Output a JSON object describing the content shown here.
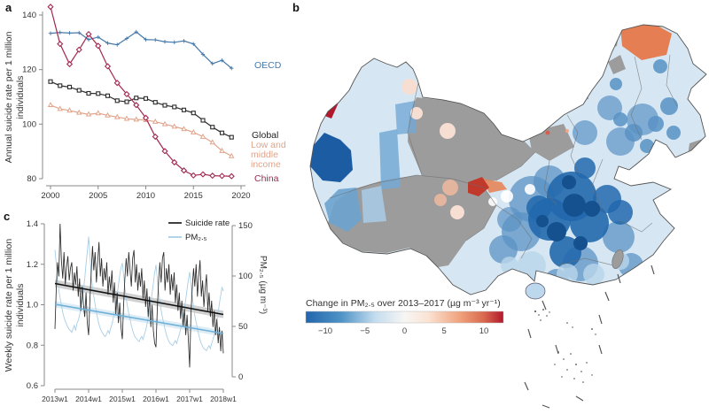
{
  "panels": {
    "a": "a",
    "b": "b",
    "c": "c"
  },
  "chart_data": [
    {
      "panel": "a",
      "type": "line",
      "title": "",
      "ylabel_lines": [
        "Annual suicide rate per 1 million",
        "individuals"
      ],
      "ylabel": "Annual suicide rate per 1 million individuals",
      "xlabel": "",
      "ylim": [
        80,
        140
      ],
      "xlim": [
        2000,
        2020
      ],
      "y_ticks": [
        140,
        120,
        100,
        80
      ],
      "y_tick_labels": [
        "140",
        "120",
        "100",
        "80"
      ],
      "x_ticks": [
        2000,
        2005,
        2010,
        2015,
        2020
      ],
      "x_tick_labels": [
        "2000",
        "2005",
        "2010",
        "2015",
        "2020"
      ],
      "x_years": [
        2000,
        2001,
        2002,
        2003,
        2004,
        2005,
        2006,
        2007,
        2008,
        2009,
        2010,
        2011,
        2012,
        2013,
        2014,
        2015,
        2016,
        2017,
        2018,
        2019
      ],
      "series": [
        {
          "name": "OECD",
          "color": "#4679a9",
          "marker": "plus",
          "label_lines": [
            "OECD"
          ],
          "values": [
            133.3,
            133.6,
            133.4,
            133.5,
            131.0,
            131.9,
            129.7,
            129.1,
            131.4,
            133.8,
            131.0,
            130.9,
            130.2,
            130.0,
            130.5,
            129.4,
            125.6,
            122.2,
            123.4,
            120.5
          ]
        },
        {
          "name": "Global",
          "color": "#2b2b2b",
          "marker": "square",
          "label_lines": [
            "Global"
          ],
          "values": [
            115.6,
            114.1,
            113.6,
            112.4,
            111.3,
            111.2,
            110.4,
            108.6,
            108.2,
            109.6,
            109.4,
            108.0,
            106.9,
            106.3,
            105.2,
            104.1,
            101.4,
            98.9,
            96.8,
            95.2
          ]
        },
        {
          "name": "Low and middle income",
          "color": "#e2a48b",
          "marker": "triangle",
          "label_lines": [
            "Low and",
            "middle",
            "income"
          ],
          "values": [
            107.0,
            105.6,
            105.0,
            104.2,
            103.6,
            104.0,
            103.2,
            102.6,
            102.0,
            101.7,
            101.5,
            100.9,
            100.0,
            99.1,
            98.2,
            97.0,
            95.4,
            93.3,
            90.2,
            88.3
          ]
        },
        {
          "name": "China",
          "color": "#a12950",
          "marker": "diamond",
          "label_lines": [
            "China"
          ],
          "values": [
            143.0,
            129.4,
            122.0,
            127.3,
            133.0,
            128.7,
            121.2,
            115.1,
            111.0,
            107.0,
            102.3,
            95.4,
            90.1,
            86.0,
            83.0,
            81.2,
            81.6,
            81.1,
            81.0,
            80.9
          ]
        }
      ]
    },
    {
      "panel": "b",
      "type": "heatmap",
      "subtype": "choropleth-map",
      "title": "Change in PM₂.₅ over 2013–2017 (µg m⁻³ yr⁻¹)",
      "description": "County-level map of China: blue = decline in PM2.5, red = increase, gray = no data; dashed nine-dash line and island dots in the South China Sea",
      "colorbar_range": [
        -12.5,
        12.5
      ],
      "colorbar_ticks": [
        -10,
        -5,
        0,
        5,
        10
      ],
      "colorbar_tick_labels": [
        "−10",
        "−5",
        "0",
        "5",
        "10"
      ],
      "gradient_stops": [
        "#2166ac",
        "#4f93c6",
        "#c3dcee",
        "#f7f6f4",
        "#fbe3d3",
        "#f0a27c",
        "#d96a4f",
        "#b2182b"
      ],
      "region_colors": {
        "base": "#d6e7f3",
        "no-data": "#9c9c9c",
        "cluster-mid": "#5b93c4",
        "cluster-dark": "#2268ad",
        "cluster-core": "#15508f",
        "south-light": "#b9d6ea",
        "ne-blue": "#4f8cc0",
        "xinjiang-deep": "#1c5ca3",
        "xinjiang-mid": "#74a9d4",
        "tibet-west-blue": "#6ba3cf",
        "tibet-west-light": "#a9cbe4",
        "ili-red": "#b2182b",
        "ili-orange": "#e29372",
        "northeast-orange": "#e57e52",
        "sichuan-red": "#c0392b",
        "sichuan-orange": "#e58559",
        "sichuan-salmon": "#f0b99f",
        "pale-pink": "#f6ded2",
        "red-dot": "#d6604d",
        "orange-dot": "#f4a582",
        "white-patch": "#ffffff",
        "hainan": "#bdd7ec",
        "taiwan": "#9c9c9c"
      }
    },
    {
      "panel": "c",
      "type": "line",
      "left_ylabel_lines": [
        "Weekly suicide rate per 1 million",
        "individuals"
      ],
      "left_ylabel": "Weekly suicide rate per 1 million individuals",
      "right_ylabel": "PM₂.₅ (µg m⁻³)",
      "left_ylim": [
        0.6,
        1.4
      ],
      "right_ylim": [
        0,
        150
      ],
      "left_ticks": [
        1.4,
        1.2,
        1.0,
        0.8,
        0.6
      ],
      "left_tick_labels": [
        "1.4",
        "1.2",
        "1.0",
        "0.8",
        "0.6"
      ],
      "right_ticks": [
        150,
        100,
        50,
        0
      ],
      "right_tick_labels": [
        "150",
        "100",
        "50",
        "0"
      ],
      "x_tick_labels": [
        "2013w1",
        "2014w1",
        "2015w1",
        "2016w1",
        "2017w1",
        "2018w1"
      ],
      "legend": [
        "Suicide rate",
        "PM₂.₅"
      ],
      "colors": {
        "suicide": "#2b2b2b",
        "pm25": "#a9cfe5",
        "suicide_trend": "#111111",
        "pm25_trend": "#6fb0d8",
        "suicide_band": "#9a9a9a",
        "pm25_band": "#bcd9ec"
      },
      "weeks_per_point": 2,
      "total_weeks": 260,
      "suicide_trend": {
        "start": 1.105,
        "end": 0.952
      },
      "pm25_trend": {
        "start": 72,
        "end": 43
      },
      "suicide": [
        0.88,
        1.08,
        1.21,
        1.14,
        1.4,
        1.22,
        1.13,
        1.26,
        1.1,
        1.19,
        1.24,
        1.12,
        1.18,
        1.21,
        1.07,
        1.16,
        1.1,
        1.19,
        1.04,
        1.13,
        0.97,
        1.09,
        1.0,
        0.94,
        1.06,
        0.91,
        0.85,
        1.03,
        1.16,
        1.29,
        1.17,
        1.26,
        1.11,
        1.21,
        1.31,
        1.14,
        1.23,
        1.09,
        1.18,
        1.12,
        1.21,
        1.05,
        1.14,
        1.07,
        1.17,
        1.01,
        1.11,
        0.95,
        1.06,
        0.91,
        1.01,
        0.89,
        0.83,
        1.0,
        1.13,
        1.23,
        1.14,
        1.26,
        1.17,
        1.09,
        1.23,
        1.27,
        1.11,
        1.2,
        1.07,
        1.16,
        1.09,
        1.18,
        1.03,
        1.12,
        0.99,
        1.08,
        0.94,
        1.04,
        0.89,
        1.0,
        0.87,
        0.81,
        0.79,
        0.98,
        1.11,
        1.21,
        1.11,
        1.23,
        1.26,
        1.07,
        1.18,
        1.11,
        1.2,
        1.05,
        1.15,
        1.07,
        1.16,
        1.01,
        1.1,
        0.97,
        1.06,
        0.93,
        1.02,
        0.89,
        0.98,
        0.85,
        0.95,
        0.83,
        0.69,
        0.96,
        1.08,
        1.18,
        1.09,
        1.2,
        1.04,
        1.14,
        1.22,
        1.04,
        1.12,
        0.99,
        1.08,
        1.15,
        0.97,
        1.06,
        0.94,
        1.02,
        0.89,
        0.97,
        0.85,
        0.93,
        0.81,
        0.89,
        0.77,
        0.87,
        0.76
      ],
      "pm25": [
        126,
        112,
        96,
        86,
        78,
        71,
        64,
        59,
        55,
        52,
        49,
        47,
        46,
        44,
        48,
        51,
        46,
        53,
        56,
        61,
        68,
        76,
        86,
        97,
        112,
        124,
        139,
        121,
        101,
        89,
        80,
        72,
        64,
        58,
        52,
        48,
        45,
        43,
        41,
        40,
        43,
        46,
        43,
        48,
        52,
        58,
        65,
        72,
        81,
        91,
        101,
        108,
        113,
        101,
        88,
        78,
        70,
        63,
        57,
        51,
        46,
        42,
        39,
        38,
        36,
        35,
        38,
        40,
        37,
        42,
        46,
        52,
        58,
        65,
        73,
        83,
        93,
        103,
        111,
        98,
        85,
        75,
        66,
        59,
        53,
        47,
        42,
        38,
        35,
        33,
        32,
        31,
        34,
        36,
        33,
        38,
        42,
        47,
        53,
        61,
        68,
        77,
        87,
        96,
        104,
        92,
        80,
        70,
        61,
        54,
        48,
        42,
        37,
        33,
        30,
        28,
        27,
        26,
        29,
        31,
        28,
        33,
        37,
        42,
        48,
        56,
        64,
        73,
        81,
        89,
        85
      ]
    }
  ]
}
